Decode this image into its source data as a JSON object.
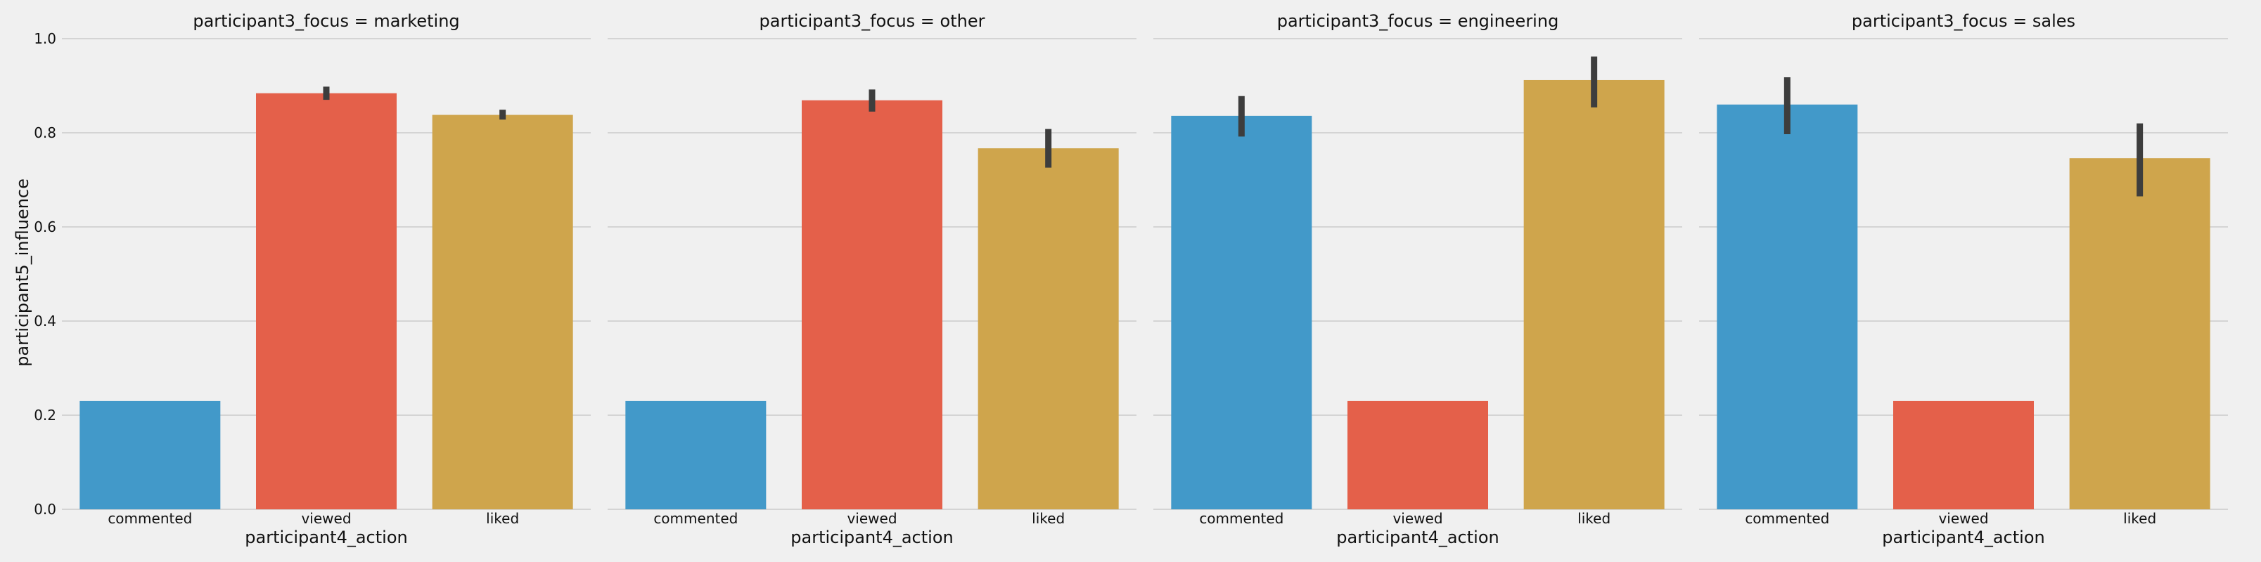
{
  "figure": {
    "ylabel": "participant5_influence",
    "xlabel": "participant4_action",
    "yticks": [
      0.0,
      0.2,
      0.4,
      0.6,
      0.8,
      1.0
    ],
    "ylim": [
      0,
      1.0
    ]
  },
  "chart_data": [
    {
      "type": "bar",
      "title": "participant3_focus = marketing",
      "categories": [
        "commented",
        "viewed",
        "liked"
      ],
      "values": [
        0.23,
        0.884,
        0.838
      ],
      "error_low": [
        null,
        0.87,
        0.828
      ],
      "error_high": [
        null,
        0.898,
        0.849
      ],
      "colors": [
        "#4299c9",
        "#e4604a",
        "#cfa54c"
      ],
      "xlabel": "participant4_action",
      "ylabel": "participant5_influence",
      "ylim": [
        0,
        1.0
      ],
      "grid": true
    },
    {
      "type": "bar",
      "title": "participant3_focus = other",
      "categories": [
        "commented",
        "viewed",
        "liked"
      ],
      "values": [
        0.23,
        0.869,
        0.767
      ],
      "error_low": [
        null,
        0.845,
        0.726
      ],
      "error_high": [
        null,
        0.892,
        0.808
      ],
      "colors": [
        "#4299c9",
        "#e4604a",
        "#cfa54c"
      ],
      "xlabel": "participant4_action",
      "ylim": [
        0,
        1.0
      ],
      "grid": true
    },
    {
      "type": "bar",
      "title": "participant3_focus = engineering",
      "categories": [
        "commented",
        "viewed",
        "liked"
      ],
      "values": [
        0.836,
        0.23,
        0.912
      ],
      "error_low": [
        0.792,
        null,
        0.854
      ],
      "error_high": [
        0.878,
        null,
        0.962
      ],
      "colors": [
        "#4299c9",
        "#e4604a",
        "#cfa54c"
      ],
      "xlabel": "participant4_action",
      "ylim": [
        0,
        1.0
      ],
      "grid": true
    },
    {
      "type": "bar",
      "title": "participant3_focus = sales",
      "categories": [
        "commented",
        "viewed",
        "liked"
      ],
      "values": [
        0.86,
        0.23,
        0.746
      ],
      "error_low": [
        0.797,
        null,
        0.665
      ],
      "error_high": [
        0.918,
        null,
        0.82
      ],
      "colors": [
        "#4299c9",
        "#e4604a",
        "#cfa54c"
      ],
      "xlabel": "participant4_action",
      "ylim": [
        0,
        1.0
      ],
      "grid": true
    }
  ]
}
